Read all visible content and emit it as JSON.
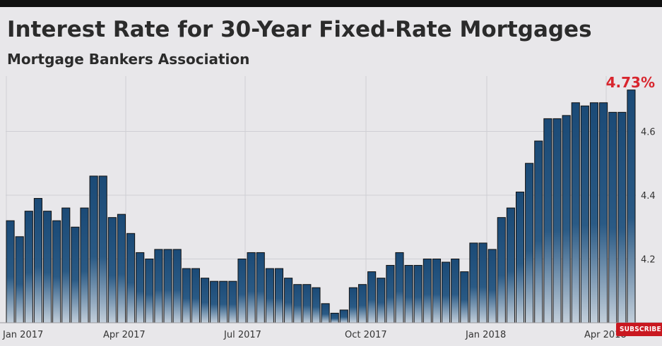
{
  "chart_data": {
    "type": "bar",
    "title": "Interest Rate for 30-Year Fixed-Rate Mortgages",
    "subtitle": "Mortgage Bankers Association",
    "last_value_label": "4.73%",
    "x_tick_labels": [
      "Jan 2017",
      "Apr 2017",
      "Jul 2017",
      "Oct 2017",
      "Jan 2018",
      "Apr 2018"
    ],
    "y_tick_labels": [
      "4.2",
      "4.4",
      "4.6"
    ],
    "ylim": [
      4.0,
      4.8
    ],
    "grid": true,
    "bar_color": "#2a5a85",
    "values": [
      4.32,
      4.27,
      4.35,
      4.39,
      4.35,
      4.32,
      4.36,
      4.3,
      4.36,
      4.46,
      4.46,
      4.33,
      4.34,
      4.28,
      4.22,
      4.2,
      4.23,
      4.23,
      4.23,
      4.17,
      4.17,
      4.14,
      4.13,
      4.13,
      4.13,
      4.2,
      4.22,
      4.22,
      4.17,
      4.17,
      4.14,
      4.12,
      4.12,
      4.11,
      4.06,
      4.03,
      4.04,
      4.11,
      4.12,
      4.16,
      4.14,
      4.18,
      4.22,
      4.18,
      4.18,
      4.2,
      4.2,
      4.19,
      4.2,
      4.16,
      4.25,
      4.25,
      4.23,
      4.33,
      4.36,
      4.41,
      4.5,
      4.57,
      4.64,
      4.64,
      4.65,
      4.69,
      4.68,
      4.69,
      4.69,
      4.66,
      4.66,
      4.73
    ]
  },
  "overlay": {
    "subscribe_label": "SUBSCRIBE"
  }
}
